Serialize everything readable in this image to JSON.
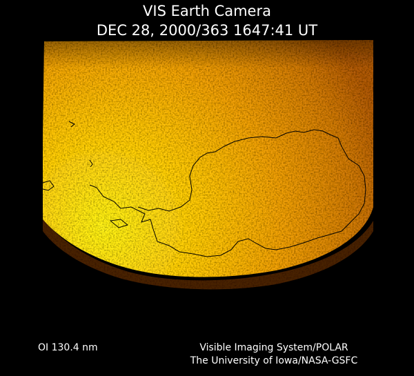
{
  "header": {
    "title": "VIS Earth Camera",
    "timestamp": "DEC 28, 2000/363 1647:41 UT"
  },
  "footer": {
    "filter": "OI 130.4 nm",
    "credits": [
      "Visible Imaging System/POLAR",
      "The University of Iowa/NASA-GSFC"
    ]
  }
}
